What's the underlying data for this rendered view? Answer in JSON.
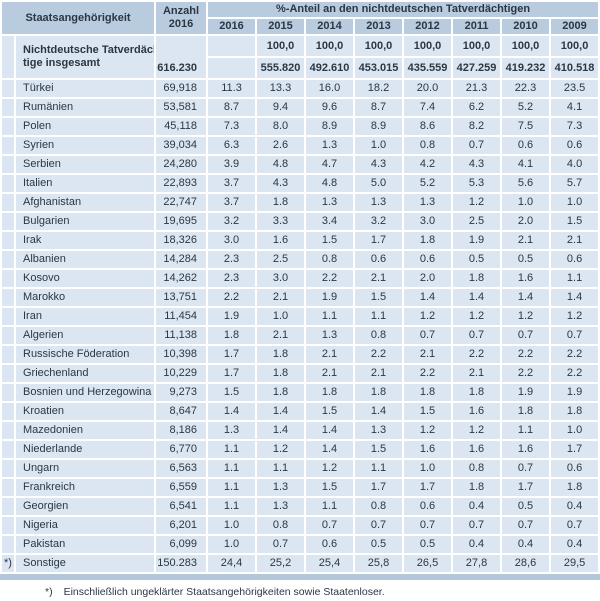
{
  "table": {
    "header": {
      "nationality": "Staatsangehörigkeit",
      "count_line1": "Anzahl",
      "count_line2": "2016",
      "share_title": "%-Anteil an den nichtdeutschen Tatverdächtigen",
      "years": [
        "2016",
        "2015",
        "2014",
        "2013",
        "2012",
        "2011",
        "2010",
        "2009"
      ]
    },
    "totals": {
      "label_line1": "Nichtdeutsche Tatverdäch-",
      "label_line2": "tige insgesamt",
      "count": "616.230",
      "share_row": [
        "",
        "100,0",
        "100,0",
        "100,0",
        "100,0",
        "100,0",
        "100,0",
        "100,0"
      ],
      "abs_row": [
        "",
        "555.820",
        "492.610",
        "453.015",
        "435.559",
        "427.259",
        "419.232",
        "410.518"
      ]
    },
    "rows": [
      {
        "marker": "",
        "name": "Türkei",
        "count": "69,918",
        "shares": [
          "11.3",
          "13.3",
          "16.0",
          "18.2",
          "20.0",
          "21.3",
          "22.3",
          "23.5"
        ]
      },
      {
        "marker": "",
        "name": "Rumänien",
        "count": "53,581",
        "shares": [
          "8.7",
          "9.4",
          "9.6",
          "8.7",
          "7.4",
          "6.2",
          "5.2",
          "4.1"
        ]
      },
      {
        "marker": "",
        "name": "Polen",
        "count": "45,118",
        "shares": [
          "7.3",
          "8.0",
          "8.9",
          "8.9",
          "8.6",
          "8.2",
          "7.5",
          "7.3"
        ]
      },
      {
        "marker": "",
        "name": "Syrien",
        "count": "39,034",
        "shares": [
          "6.3",
          "2.6",
          "1.3",
          "1.0",
          "0.8",
          "0.7",
          "0.6",
          "0.6"
        ]
      },
      {
        "marker": "",
        "name": "Serbien",
        "count": "24,280",
        "shares": [
          "3.9",
          "4.8",
          "4.7",
          "4.3",
          "4.2",
          "4.3",
          "4.1",
          "4.0"
        ]
      },
      {
        "marker": "",
        "name": "Italien",
        "count": "22,893",
        "shares": [
          "3.7",
          "4.3",
          "4.8",
          "5.0",
          "5.2",
          "5.3",
          "5.6",
          "5.7"
        ]
      },
      {
        "marker": "",
        "name": "Afghanistan",
        "count": "22,747",
        "shares": [
          "3.7",
          "1.8",
          "1.3",
          "1.3",
          "1.3",
          "1.2",
          "1.0",
          "1.0"
        ]
      },
      {
        "marker": "",
        "name": "Bulgarien",
        "count": "19,695",
        "shares": [
          "3.2",
          "3.3",
          "3.4",
          "3.2",
          "3.0",
          "2.5",
          "2.0",
          "1.5"
        ]
      },
      {
        "marker": "",
        "name": "Irak",
        "count": "18,326",
        "shares": [
          "3.0",
          "1.6",
          "1.5",
          "1.7",
          "1.8",
          "1.9",
          "2.1",
          "2.1"
        ]
      },
      {
        "marker": "",
        "name": "Albanien",
        "count": "14,284",
        "shares": [
          "2.3",
          "2.5",
          "0.8",
          "0.6",
          "0.6",
          "0.5",
          "0.5",
          "0.6"
        ]
      },
      {
        "marker": "",
        "name": "Kosovo",
        "count": "14,262",
        "shares": [
          "2.3",
          "3.0",
          "2.2",
          "2.1",
          "2.0",
          "1.8",
          "1.6",
          "1.1"
        ]
      },
      {
        "marker": "",
        "name": "Marokko",
        "count": "13,751",
        "shares": [
          "2.2",
          "2.1",
          "1.9",
          "1.5",
          "1.4",
          "1.4",
          "1.4",
          "1.4"
        ]
      },
      {
        "marker": "",
        "name": "Iran",
        "count": "11,454",
        "shares": [
          "1.9",
          "1.0",
          "1.1",
          "1.1",
          "1.2",
          "1.2",
          "1.2",
          "1.2"
        ]
      },
      {
        "marker": "",
        "name": "Algerien",
        "count": "11,138",
        "shares": [
          "1.8",
          "2.1",
          "1.3",
          "0.8",
          "0.7",
          "0.7",
          "0.7",
          "0.7"
        ]
      },
      {
        "marker": "",
        "name": "Russische Föderation",
        "count": "10,398",
        "shares": [
          "1.7",
          "1.8",
          "2.1",
          "2.2",
          "2.1",
          "2.2",
          "2.2",
          "2.2"
        ]
      },
      {
        "marker": "",
        "name": "Griechenland",
        "count": "10,229",
        "shares": [
          "1.7",
          "1.8",
          "2.1",
          "2.1",
          "2.2",
          "2.1",
          "2.2",
          "2.2"
        ]
      },
      {
        "marker": "",
        "name": "Bosnien und Herzegowina",
        "count": "9,273",
        "shares": [
          "1.5",
          "1.8",
          "1.8",
          "1.8",
          "1.8",
          "1.8",
          "1.9",
          "1.9"
        ]
      },
      {
        "marker": "",
        "name": "Kroatien",
        "count": "8,647",
        "shares": [
          "1.4",
          "1.4",
          "1.5",
          "1.4",
          "1.5",
          "1.6",
          "1.8",
          "1.8"
        ]
      },
      {
        "marker": "",
        "name": "Mazedonien",
        "count": "8,186",
        "shares": [
          "1.3",
          "1.4",
          "1.4",
          "1.3",
          "1.2",
          "1.2",
          "1.1",
          "1.0"
        ]
      },
      {
        "marker": "",
        "name": "Niederlande",
        "count": "6,770",
        "shares": [
          "1.1",
          "1.2",
          "1.4",
          "1.5",
          "1.6",
          "1.6",
          "1.6",
          "1.7"
        ]
      },
      {
        "marker": "",
        "name": "Ungarn",
        "count": "6,563",
        "shares": [
          "1.1",
          "1.1",
          "1.2",
          "1.1",
          "1.0",
          "0.8",
          "0.7",
          "0.6"
        ]
      },
      {
        "marker": "",
        "name": "Frankreich",
        "count": "6,559",
        "shares": [
          "1.1",
          "1.3",
          "1.5",
          "1.7",
          "1.7",
          "1.8",
          "1.7",
          "1.8"
        ]
      },
      {
        "marker": "",
        "name": "Georgien",
        "count": "6,541",
        "shares": [
          "1.1",
          "1.3",
          "1.1",
          "0.8",
          "0.6",
          "0.4",
          "0.5",
          "0.4"
        ]
      },
      {
        "marker": "",
        "name": "Nigeria",
        "count": "6,201",
        "shares": [
          "1.0",
          "0.8",
          "0.7",
          "0.7",
          "0.7",
          "0.7",
          "0.7",
          "0.7"
        ]
      },
      {
        "marker": "",
        "name": "Pakistan",
        "count": "6,099",
        "shares": [
          "1.0",
          "0.7",
          "0.6",
          "0.5",
          "0.5",
          "0.4",
          "0.4",
          "0.4"
        ]
      },
      {
        "marker": "*)",
        "name": "Sonstige",
        "count": "150.283",
        "shares": [
          "24,4",
          "25,2",
          "25,4",
          "25,8",
          "26,5",
          "27,8",
          "28,6",
          "29,5"
        ]
      }
    ],
    "footnote": {
      "marker": "*)",
      "text": "Einschließlich ungeklärter Staatsangehörigkeiten sowie Staatenloser."
    }
  },
  "colors": {
    "header_bg": "#b8cbdf",
    "row_bg": "#dbe6f2",
    "bar_bg": "#b2c7dc",
    "text": "#2b3744"
  }
}
